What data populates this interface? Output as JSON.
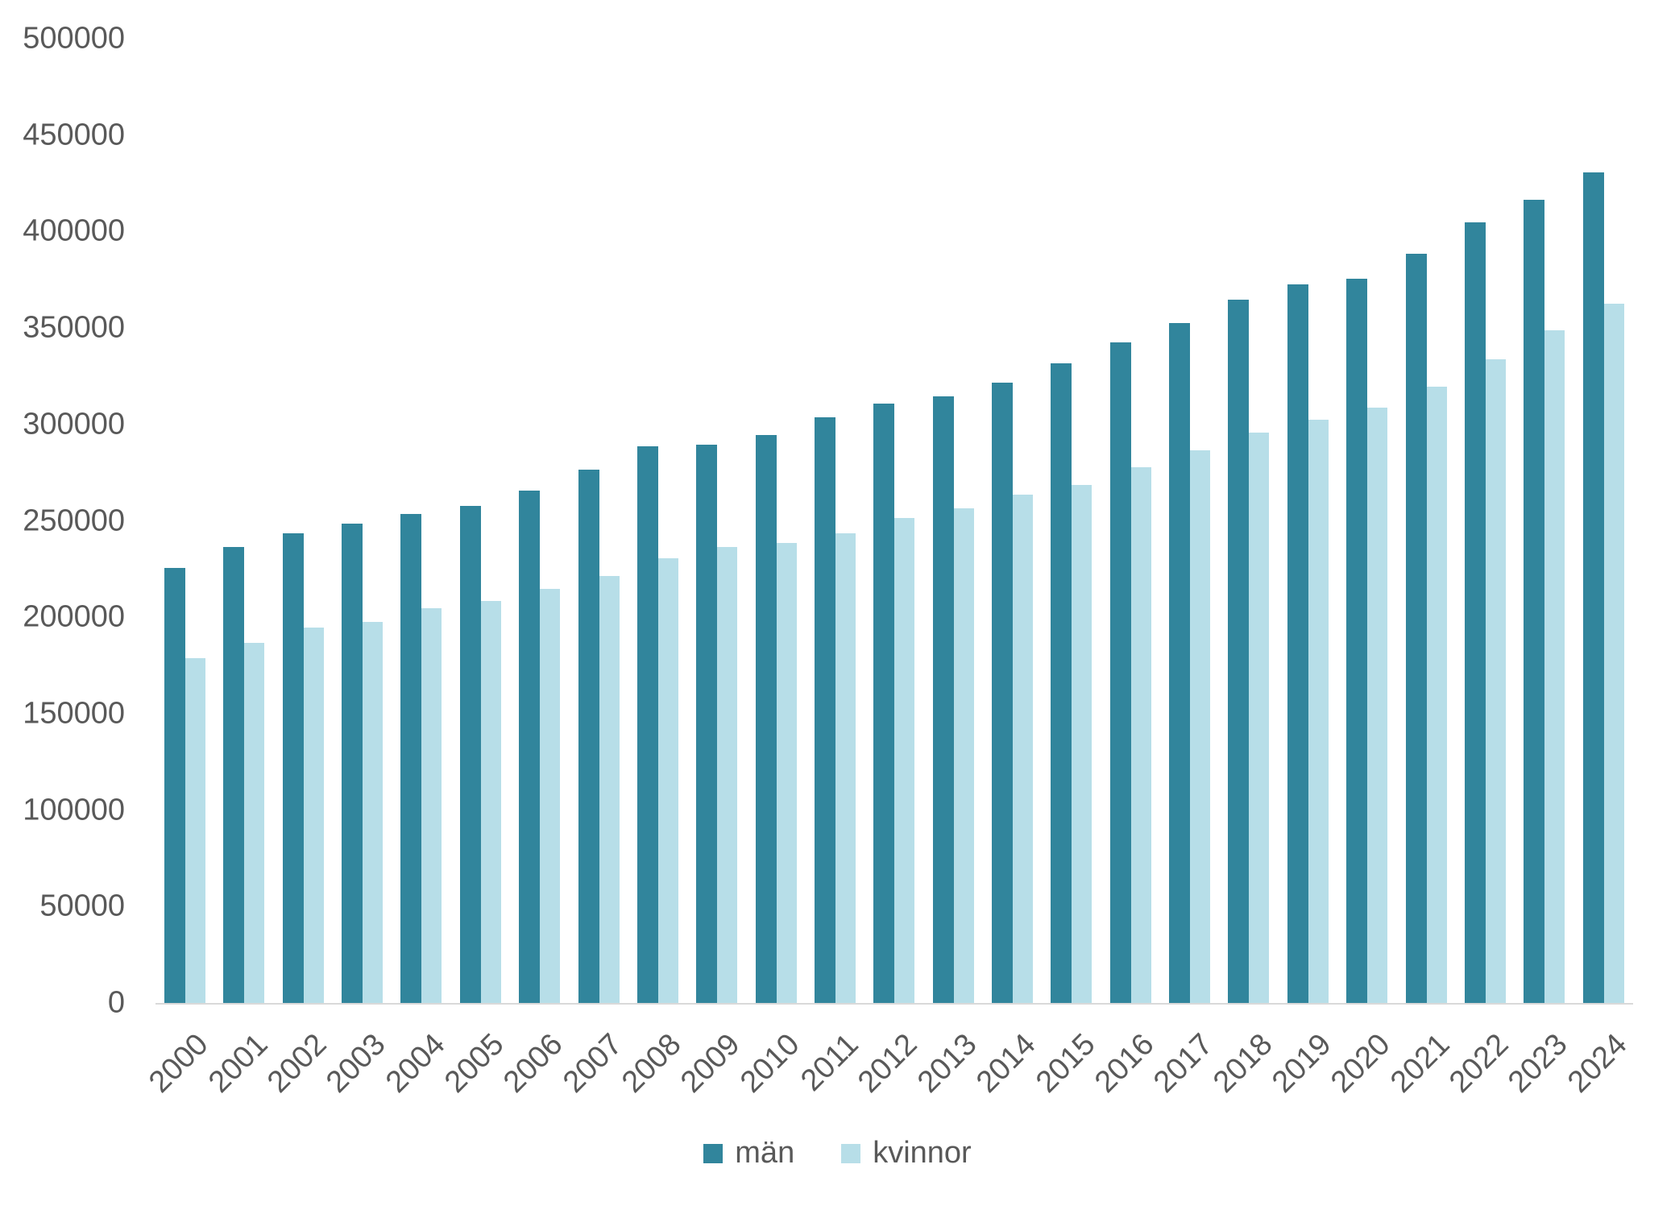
{
  "chart_data": {
    "type": "bar",
    "title": "",
    "xlabel": "",
    "ylabel": "",
    "categories": [
      "2000",
      "2001",
      "2002",
      "2003",
      "2004",
      "2005",
      "2006",
      "2007",
      "2008",
      "2009",
      "2010",
      "2011",
      "2012",
      "2013",
      "2014",
      "2015",
      "2016",
      "2017",
      "2018",
      "2019",
      "2020",
      "2021",
      "2022",
      "2023",
      "2024"
    ],
    "series": [
      {
        "name": "män",
        "color": "#31859C",
        "values": [
          226000,
          237000,
          244000,
          249000,
          254000,
          258000,
          266000,
          277000,
          289000,
          290000,
          295000,
          304000,
          311000,
          315000,
          322000,
          332000,
          343000,
          353000,
          365000,
          373000,
          376000,
          389000,
          405000,
          417000,
          431000
        ]
      },
      {
        "name": "kvinnor",
        "color": "#B7DEE8",
        "values": [
          179000,
          187000,
          195000,
          198000,
          205000,
          209000,
          215000,
          222000,
          231000,
          237000,
          239000,
          244000,
          252000,
          257000,
          264000,
          269000,
          278000,
          287000,
          296000,
          303000,
          309000,
          320000,
          334000,
          349000,
          363000
        ]
      }
    ],
    "ylim": [
      0,
      500000
    ],
    "ytick_interval": 50000,
    "ytick_labels": [
      "0",
      "50000",
      "100000",
      "150000",
      "200000",
      "250000",
      "300000",
      "350000",
      "400000",
      "450000",
      "500000"
    ],
    "x_tick_rotation": -45,
    "grid": false,
    "legend_position": "bottom",
    "text_color": "#595959",
    "axis_line_color": "#D9D9D9"
  }
}
